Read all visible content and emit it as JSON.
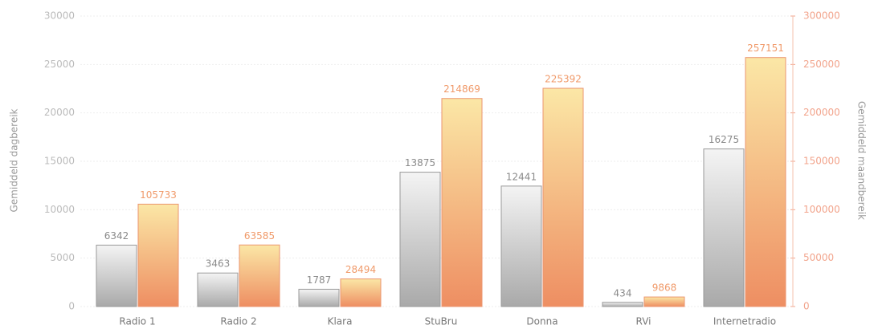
{
  "chart_data": {
    "type": "bar",
    "categories": [
      "Radio 1",
      "Radio 2",
      "Klara",
      "StuBru",
      "Donna",
      "RVi",
      "Internetradio"
    ],
    "series": [
      {
        "color": "#b8b8b8",
        "values": [
          6342,
          3463,
          1787,
          13875,
          12441,
          434,
          16275
        ]
      },
      {
        "color": "#f09a6a",
        "axis": "y2",
        "values": [
          105733,
          63585,
          28494,
          214869,
          225392,
          9868,
          257151
        ]
      }
    ],
    "ylabel": "Gemiddeld dagbereik",
    "y2label": "Gemiddeld maandbereik",
    "ylim": [
      0,
      30000
    ],
    "yticks": [
      0,
      5000,
      10000,
      15000,
      20000,
      25000,
      30000
    ],
    "y2lim": [
      0,
      300000
    ],
    "y2ticks": [
      0,
      50000,
      100000,
      150000,
      200000,
      250000,
      300000
    ],
    "grid": true
  }
}
